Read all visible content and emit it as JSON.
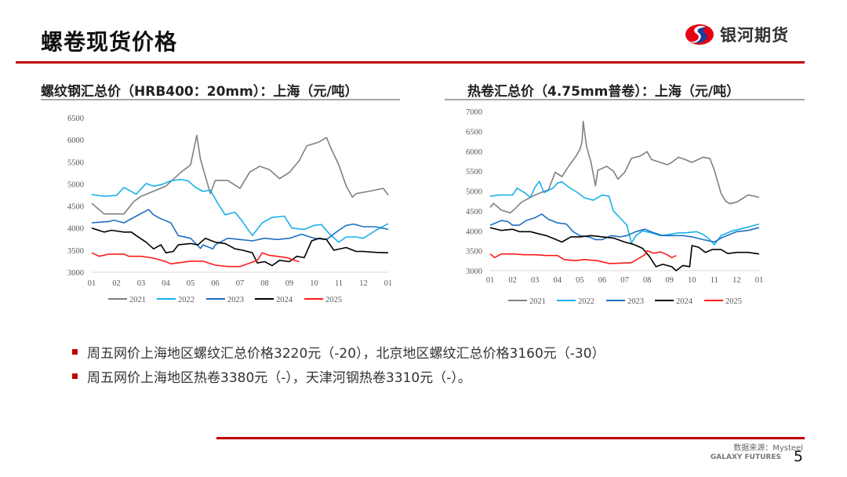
{
  "header": {
    "title": "螺卷现货价格",
    "logo_text": "银河期货"
  },
  "colors": {
    "accent": "#c00000",
    "s2021": "#808080",
    "s2022": "#19b0ea",
    "s2023": "#1f6fc0",
    "s2024": "#000000",
    "s2025": "#ff1a1a"
  },
  "chart_data": [
    {
      "type": "line",
      "title": "螺纹钢汇总价（HRB400：20mm）：上海（元/吨）",
      "x_ticks": [
        "01",
        "02",
        "03",
        "04",
        "05",
        "06",
        "07",
        "08",
        "09",
        "10",
        "11",
        "12",
        "01"
      ],
      "xlim": [
        0,
        12
      ],
      "ylim": [
        3000,
        6500
      ],
      "y_ticks": [
        3000,
        3500,
        4000,
        4500,
        5000,
        5500,
        6000,
        6500
      ],
      "legend": "bottom",
      "grid": false,
      "series": [
        {
          "name": "2021",
          "color": "#808080",
          "x": [
            0,
            0.5,
            1.3,
            1.7,
            2,
            3,
            3.6,
            4,
            4.25,
            4.4,
            4.8,
            5,
            5.5,
            6,
            6.4,
            6.8,
            7.2,
            7.6,
            8,
            8.4,
            8.7,
            9.2,
            9.5,
            9.7,
            10,
            10.3,
            10.55,
            10.7,
            11.3,
            11.8,
            12
          ],
          "y": [
            4560,
            4320,
            4320,
            4600,
            4720,
            4950,
            5260,
            5430,
            6100,
            5560,
            4780,
            5080,
            5080,
            4900,
            5270,
            5400,
            5320,
            5120,
            5260,
            5530,
            5860,
            5950,
            6050,
            5790,
            5430,
            4950,
            4700,
            4780,
            4840,
            4900,
            4750
          ]
        },
        {
          "name": "2022",
          "color": "#19b0ea",
          "x": [
            0,
            0.5,
            1,
            1.3,
            1.8,
            2.2,
            2.5,
            2.8,
            3.2,
            3.6,
            3.9,
            4.2,
            4.5,
            4.8,
            5.1,
            5.4,
            5.8,
            6.1,
            6.5,
            6.9,
            7.3,
            7.8,
            8.1,
            8.6,
            9,
            9.3,
            9.6,
            10,
            10.3,
            10.7,
            11,
            11.5,
            12
          ],
          "y": [
            4760,
            4720,
            4740,
            4920,
            4770,
            5010,
            4950,
            4980,
            5070,
            5100,
            5070,
            4920,
            4830,
            4860,
            4560,
            4300,
            4360,
            4150,
            3830,
            4120,
            4240,
            4270,
            4000,
            3970,
            4060,
            4080,
            3880,
            3680,
            3800,
            3800,
            3770,
            3950,
            4100
          ]
        },
        {
          "name": "2023",
          "color": "#1f6fc0",
          "x": [
            0,
            0.7,
            0.9,
            1.3,
            1.8,
            2.3,
            2.5,
            2.8,
            3.2,
            3.5,
            4,
            4.4,
            4.5,
            4.9,
            5,
            5.5,
            6,
            6.5,
            7,
            7.5,
            8,
            8.5,
            9,
            9.5,
            10,
            10.3,
            10.6,
            11,
            11.5,
            12
          ],
          "y": [
            4120,
            4150,
            4180,
            4120,
            4270,
            4420,
            4300,
            4210,
            4120,
            3830,
            3770,
            3540,
            3620,
            3530,
            3620,
            3770,
            3740,
            3710,
            3770,
            3740,
            3770,
            3860,
            3770,
            3740,
            3950,
            4060,
            4090,
            4030,
            4030,
            3970
          ]
        },
        {
          "name": "2024",
          "color": "#000000",
          "x": [
            0,
            0.5,
            0.8,
            1.3,
            1.6,
            1.8,
            2.2,
            2.5,
            2.8,
            3,
            3.3,
            3.5,
            4,
            4.3,
            4.6,
            5,
            5.4,
            5.8,
            6.1,
            6.5,
            6.7,
            7,
            7.3,
            7.6,
            8,
            8.3,
            8.6,
            8.9,
            9.2,
            9.5,
            9.8,
            10.3,
            10.7,
            11,
            11.5,
            12
          ],
          "y": [
            4000,
            3910,
            3950,
            3910,
            3910,
            3830,
            3680,
            3530,
            3620,
            3440,
            3470,
            3620,
            3650,
            3620,
            3770,
            3680,
            3650,
            3530,
            3500,
            3440,
            3210,
            3240,
            3150,
            3270,
            3240,
            3360,
            3330,
            3710,
            3770,
            3740,
            3500,
            3560,
            3470,
            3470,
            3450,
            3440
          ]
        },
        {
          "name": "2025",
          "color": "#ff1a1a",
          "x": [
            0,
            0.3,
            0.7,
            1.3,
            1.5,
            2,
            2.5,
            3,
            3.2,
            4,
            4.5,
            5,
            5.5,
            6,
            6.4,
            6.7,
            6.9,
            7.2,
            7.5,
            7.9,
            8.2,
            8.4
          ],
          "y": [
            3440,
            3360,
            3410,
            3410,
            3360,
            3360,
            3320,
            3240,
            3190,
            3250,
            3250,
            3160,
            3130,
            3130,
            3210,
            3270,
            3440,
            3380,
            3360,
            3330,
            3270,
            3240
          ]
        }
      ]
    },
    {
      "type": "line",
      "title": "热卷汇总价（4.75mm普卷）：上海（元/吨）",
      "x_ticks": [
        "01",
        "02",
        "03",
        "04",
        "05",
        "06",
        "07",
        "08",
        "09",
        "10",
        "11",
        "12",
        "01"
      ],
      "xlim": [
        0,
        12
      ],
      "ylim": [
        3000,
        7000
      ],
      "y_ticks": [
        3000,
        3500,
        4000,
        4500,
        5000,
        5500,
        6000,
        6500,
        7000
      ],
      "legend": "bottom",
      "grid": false,
      "series": [
        {
          "name": "2021",
          "color": "#808080",
          "x": [
            0,
            0.15,
            0.5,
            0.9,
            1.1,
            1.4,
            1.8,
            2,
            2.3,
            2.6,
            2.9,
            3.2,
            3.5,
            3.8,
            4,
            4.1,
            4.15,
            4.3,
            4.5,
            4.7,
            4.8,
            5.2,
            5.5,
            5.7,
            6,
            6.3,
            6.7,
            7,
            7.2,
            7.6,
            7.9,
            8.1,
            8.4,
            8.7,
            9,
            9.5,
            9.8,
            10,
            10.3,
            10.5,
            10.7,
            11,
            11.5,
            11.8,
            12
          ],
          "y": [
            4590,
            4690,
            4520,
            4450,
            4550,
            4720,
            4840,
            4900,
            4970,
            5030,
            5470,
            5360,
            5620,
            5850,
            6040,
            6240,
            6750,
            6120,
            5720,
            5130,
            5520,
            5620,
            5500,
            5300,
            5470,
            5820,
            5880,
            5990,
            5790,
            5720,
            5660,
            5720,
            5850,
            5790,
            5720,
            5850,
            5820,
            5530,
            4940,
            4750,
            4680,
            4720,
            4900,
            4870,
            4840
          ]
        },
        {
          "name": "2022",
          "color": "#19b0ea",
          "x": [
            0,
            0.4,
            1,
            1.2,
            1.5,
            1.8,
            2,
            2.2,
            2.4,
            2.8,
            3,
            3.2,
            3.5,
            3.9,
            4.2,
            4.6,
            5,
            5.3,
            5.5,
            5.8,
            6.1,
            6.3,
            6.5,
            6.8,
            7.2,
            7.6,
            8,
            8.4,
            8.7,
            9.2,
            9.5,
            9.8,
            10,
            10.3,
            10.8,
            11.4,
            11.8,
            12
          ],
          "y": [
            4870,
            4900,
            4900,
            5070,
            4970,
            4840,
            5100,
            5240,
            4960,
            5070,
            5200,
            5230,
            5100,
            4960,
            4830,
            4770,
            4900,
            4870,
            4500,
            4320,
            4140,
            3690,
            3880,
            4000,
            3950,
            3880,
            3910,
            3950,
            3950,
            3980,
            3910,
            3780,
            3650,
            3880,
            4000,
            4080,
            4140,
            4170
          ]
        },
        {
          "name": "2023",
          "color": "#1f6fc0",
          "x": [
            0,
            0.5,
            0.8,
            1,
            1.3,
            1.6,
            2,
            2.3,
            2.6,
            3,
            3.4,
            3.7,
            4,
            4.4,
            4.7,
            5,
            5.4,
            5.8,
            6.1,
            6.5,
            6.9,
            7.3,
            7.7,
            8.2,
            8.6,
            9,
            9.5,
            10,
            10.3,
            10.7,
            11,
            11.5,
            12
          ],
          "y": [
            4140,
            4260,
            4230,
            4140,
            4140,
            4260,
            4330,
            4420,
            4290,
            4200,
            4170,
            3980,
            3880,
            3850,
            3780,
            3780,
            3880,
            3850,
            3880,
            3980,
            4040,
            3950,
            3880,
            3880,
            3880,
            3850,
            3780,
            3720,
            3820,
            3910,
            3980,
            4010,
            4080
          ]
        },
        {
          "name": "2024",
          "color": "#000000",
          "x": [
            0,
            0.5,
            1,
            1.3,
            1.8,
            2.2,
            2.5,
            2.9,
            3.2,
            3.6,
            4,
            4.5,
            5,
            5.5,
            6,
            6.4,
            6.8,
            7.1,
            7.4,
            7.7,
            8.1,
            8.3,
            8.6,
            8.9,
            9,
            9.3,
            9.6,
            9.9,
            10.3,
            10.6,
            11,
            11.5,
            12
          ],
          "y": [
            4080,
            4010,
            4040,
            3980,
            3980,
            3920,
            3880,
            3790,
            3720,
            3850,
            3850,
            3880,
            3850,
            3820,
            3720,
            3660,
            3560,
            3360,
            3100,
            3160,
            3100,
            3000,
            3130,
            3100,
            3630,
            3590,
            3460,
            3530,
            3530,
            3430,
            3460,
            3460,
            3420
          ]
        },
        {
          "name": "2025",
          "color": "#ff1a1a",
          "x": [
            0,
            0.2,
            0.5,
            1,
            1.5,
            2,
            2.5,
            3,
            3.3,
            3.8,
            4.2,
            4.8,
            5,
            5.3,
            5.8,
            6.3,
            6.6,
            6.9,
            7,
            7.3,
            7.6,
            7.9,
            8.1,
            8.3
          ],
          "y": [
            3420,
            3330,
            3420,
            3420,
            3400,
            3400,
            3380,
            3380,
            3280,
            3250,
            3280,
            3250,
            3220,
            3180,
            3190,
            3200,
            3300,
            3400,
            3500,
            3440,
            3470,
            3400,
            3330,
            3380
          ]
        }
      ]
    }
  ],
  "bullets": [
    "周五网价上海地区螺纹汇总价格3220元（-20），北京地区螺纹汇总价格3160元（-30）",
    "周五网价上海地区热卷3380元（-），天津河钢热卷3310元（-）。"
  ],
  "footer": {
    "source": "数据来源：Mysteel",
    "brand": "GALAXY FUTURES",
    "page": "5"
  }
}
